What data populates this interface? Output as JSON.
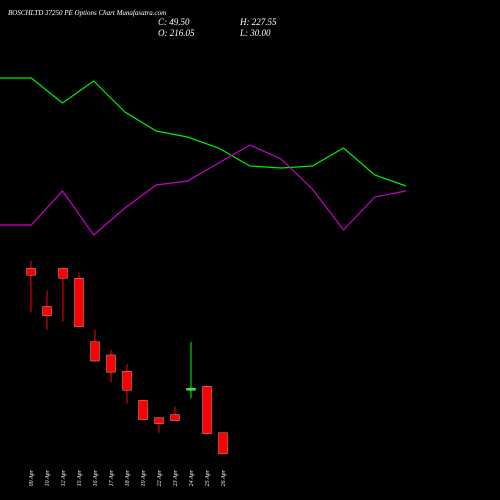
{
  "chart_data": [
    {
      "type": "candlestick",
      "title": "BOSCHLTD 37250 PE Options Chart Munafasutra.com",
      "stats": {
        "close": "C: 49.50",
        "high": "H: 227.55",
        "open": "O: 216.05",
        "low": "L: 30.00"
      },
      "categories": [
        "09 Apr",
        "10 Apr",
        "12 Apr",
        "15 Apr",
        "16 Apr",
        "17 Apr",
        "18 Apr",
        "19 Apr",
        "22 Apr",
        "23 Apr",
        "24 Apr",
        "25 Apr",
        "26 Apr"
      ],
      "open": [
        220,
        182,
        220,
        210,
        147,
        134,
        118,
        89,
        72,
        75,
        99,
        103,
        57
      ],
      "high": [
        227,
        198,
        220,
        215,
        159,
        139,
        125,
        89,
        72,
        83,
        147,
        103,
        57
      ],
      "low": [
        176,
        159,
        167,
        162,
        127,
        107,
        86,
        70,
        57,
        69,
        91,
        55,
        36
      ],
      "close": [
        213,
        173,
        210,
        162,
        128,
        117,
        99,
        70,
        66,
        69,
        101,
        56,
        36
      ],
      "up_color": "#00ff00",
      "down_color": "#ff0000",
      "ylim": [
        30,
        230
      ]
    },
    {
      "type": "line",
      "x": [
        0,
        1,
        2,
        3,
        4,
        5,
        6,
        7,
        8,
        9,
        10,
        11,
        12,
        13
      ],
      "xlim": [
        0,
        13
      ],
      "ylim": [
        0,
        250
      ],
      "series": [
        {
          "color": "#00ee00",
          "values": [
            172,
            172,
            147,
            169,
            138,
            119,
            113,
            102,
            84,
            82,
            84,
            102,
            75,
            64
          ]
        },
        {
          "color": "#cc00cc",
          "values": [
            25,
            25,
            59,
            15,
            42,
            65,
            69,
            87,
            105,
            91,
            61,
            20,
            53,
            59
          ]
        }
      ]
    }
  ]
}
